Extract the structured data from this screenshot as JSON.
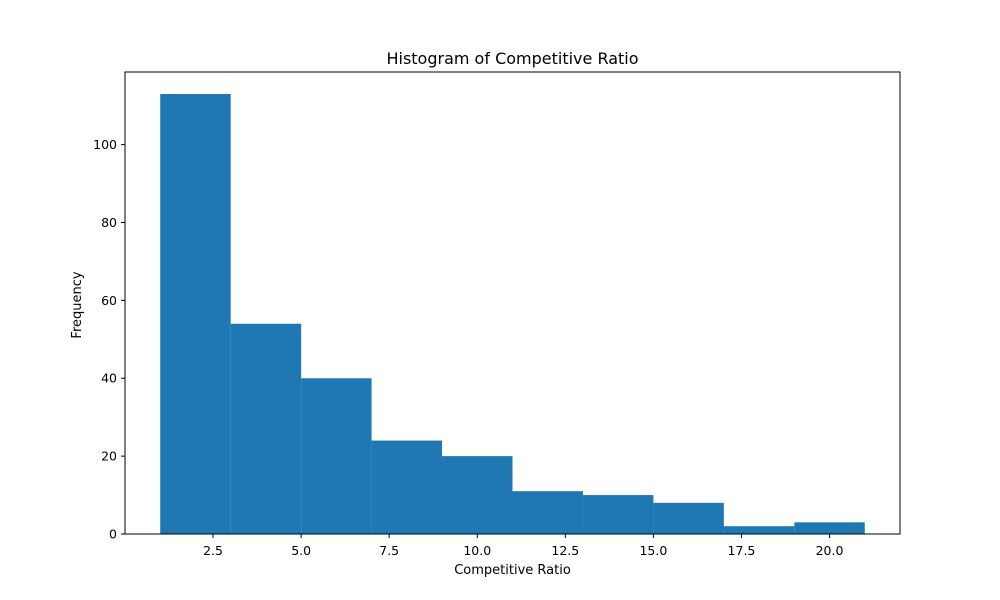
{
  "chart_data": {
    "type": "bar",
    "title": "Histogram of Competitive Ratio",
    "xlabel": "Competitive Ratio",
    "ylabel": "Frequency",
    "bins": [
      {
        "start": 1.0,
        "end": 3.0,
        "count": 113
      },
      {
        "start": 3.0,
        "end": 5.0,
        "count": 54
      },
      {
        "start": 5.0,
        "end": 7.0,
        "count": 40
      },
      {
        "start": 7.0,
        "end": 9.0,
        "count": 24
      },
      {
        "start": 9.0,
        "end": 11.0,
        "count": 20
      },
      {
        "start": 11.0,
        "end": 13.0,
        "count": 11
      },
      {
        "start": 13.0,
        "end": 15.0,
        "count": 10
      },
      {
        "start": 15.0,
        "end": 17.0,
        "count": 8
      },
      {
        "start": 17.0,
        "end": 19.0,
        "count": 2
      },
      {
        "start": 19.0,
        "end": 21.0,
        "count": 3
      }
    ],
    "xlim": [
      0.0,
      22.0
    ],
    "ylim": [
      0,
      118.65
    ],
    "xticks": [
      2.5,
      5.0,
      7.5,
      10.0,
      12.5,
      15.0,
      17.5,
      20.0
    ],
    "xtick_labels": [
      "2.5",
      "5.0",
      "7.5",
      "10.0",
      "12.5",
      "15.0",
      "17.5",
      "20.0"
    ],
    "yticks": [
      0,
      20,
      40,
      60,
      80,
      100
    ],
    "ytick_labels": [
      "0",
      "20",
      "40",
      "60",
      "80",
      "100"
    ],
    "bar_color": "#1f77b4",
    "grid": false,
    "legend": "none"
  }
}
